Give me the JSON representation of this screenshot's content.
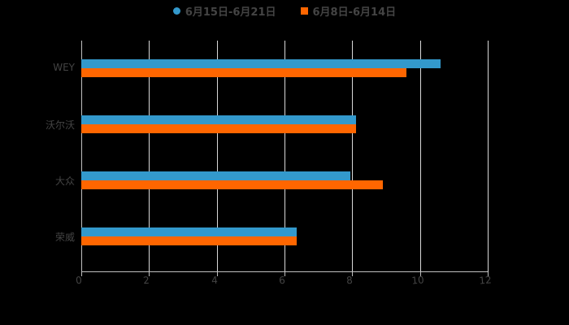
{
  "chart_data": {
    "type": "bar",
    "orientation": "horizontal",
    "title": "",
    "xlabel": "",
    "ylabel": "",
    "categories": [
      "WEY",
      "沃尔沃",
      "大众",
      "荣威"
    ],
    "series": [
      {
        "name": "6月15日-6月21日",
        "color": "#3399cc",
        "values": [
          10.6,
          8.1,
          7.95,
          6.35
        ]
      },
      {
        "name": "6月8日-6月14日",
        "color": "#ff6600",
        "values": [
          9.6,
          8.1,
          8.9,
          6.35
        ]
      }
    ],
    "xlim": [
      0,
      12
    ],
    "x_ticks": [
      "0",
      "2",
      "4",
      "6",
      "8",
      "10",
      "12"
    ],
    "grid": true,
    "legend_position": "top"
  },
  "legend": {
    "series1": "6月15日-6月21日",
    "series2": "6月8日-6月14日"
  },
  "axis": {
    "ticks": [
      "0",
      "2",
      "4",
      "6",
      "8",
      "10",
      "12"
    ],
    "categories": [
      "WEY",
      "沃尔沃",
      "大众",
      "荣威"
    ]
  }
}
